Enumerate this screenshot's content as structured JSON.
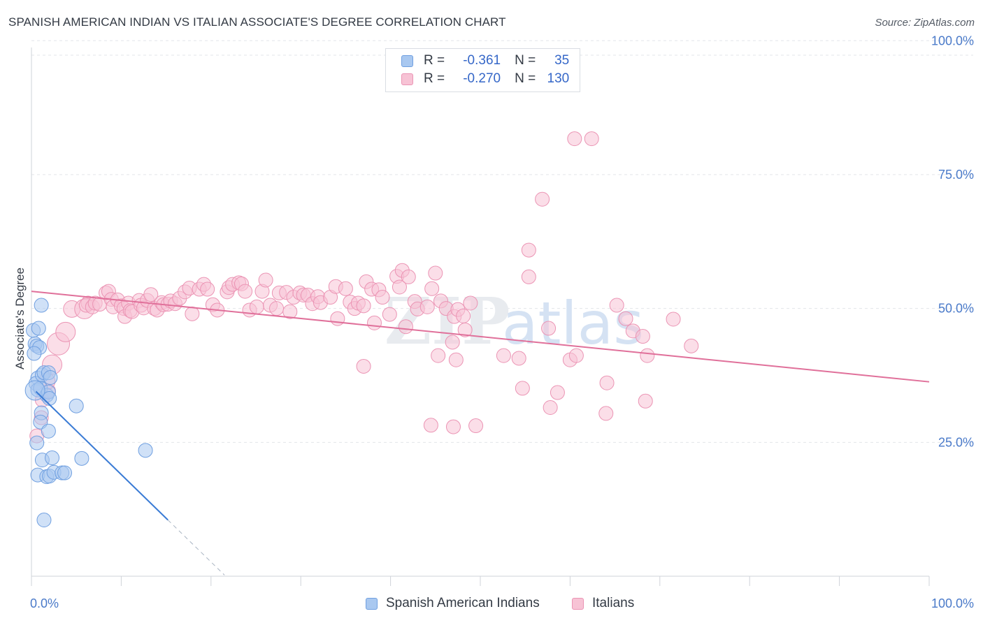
{
  "title": "SPANISH AMERICAN INDIAN VS ITALIAN ASSOCIATE'S DEGREE CORRELATION CHART",
  "source": "Source: ZipAtlas.com",
  "colors": {
    "blue": "#3a7bd5",
    "blue_fill": "#a9c8f0",
    "blue_stroke": "#6f9fe0",
    "pink": "#e0709a",
    "pink_fill": "#f7c3d5",
    "pink_stroke": "#eb94b4",
    "tick_text": "#4a7ac9"
  },
  "legend": {
    "rows": [
      {
        "r_label": "R =",
        "r_value": "-0.361",
        "n_label": "N =",
        "n_value": "35"
      },
      {
        "r_label": "R =",
        "r_value": "-0.270",
        "n_label": "N =",
        "n_value": "130"
      }
    ]
  },
  "bottom_legend": {
    "series1": "Spanish American Indians",
    "series2": "Italians"
  },
  "chart_data": {
    "type": "scatter",
    "title": "SPANISH AMERICAN INDIAN VS ITALIAN ASSOCIATE'S DEGREE CORRELATION CHART",
    "xlabel": "",
    "ylabel": "Associate's Degree",
    "xlim": [
      0,
      100
    ],
    "ylim": [
      0,
      100
    ],
    "x_tick_labels": [
      "0.0%",
      "100.0%"
    ],
    "y_ticks": [
      25,
      50,
      75,
      100
    ],
    "y_tick_labels": [
      "25.0%",
      "50.0%",
      "75.0%",
      "100.0%"
    ],
    "grid": true,
    "legend_position": "top-center",
    "watermark": "ZIPatlas",
    "series": [
      {
        "name": "Spanish American Indians",
        "r": -0.361,
        "n": 35,
        "trend": {
          "x0": 0.5,
          "y0": 34.5,
          "x1": 15.2,
          "y1": 10.5,
          "dash_to_x": 21.5
        },
        "points": [
          [
            0.2,
            45.9
          ],
          [
            0.4,
            43.4
          ],
          [
            0.6,
            43.0
          ],
          [
            0.9,
            42.7
          ],
          [
            1.1,
            50.6
          ],
          [
            0.8,
            46.3
          ],
          [
            0.7,
            37.0
          ],
          [
            0.5,
            36.0
          ],
          [
            0.7,
            34.8
          ],
          [
            1.0,
            35.1
          ],
          [
            1.2,
            37.6
          ],
          [
            1.4,
            38.0
          ],
          [
            1.9,
            38.0
          ],
          [
            2.1,
            37.1
          ],
          [
            1.7,
            33.8
          ],
          [
            1.9,
            34.4
          ],
          [
            2.0,
            33.2
          ],
          [
            1.1,
            30.5
          ],
          [
            1.0,
            28.8
          ],
          [
            1.9,
            27.1
          ],
          [
            0.6,
            24.9
          ],
          [
            1.2,
            21.7
          ],
          [
            2.3,
            22.1
          ],
          [
            0.7,
            18.9
          ],
          [
            1.7,
            18.6
          ],
          [
            2.0,
            18.7
          ],
          [
            2.5,
            19.4
          ],
          [
            3.4,
            19.3
          ],
          [
            3.7,
            19.3
          ],
          [
            5.0,
            31.8
          ],
          [
            5.6,
            22.0
          ],
          [
            12.7,
            23.5
          ],
          [
            1.4,
            10.5
          ],
          [
            0.4,
            34.7
          ],
          [
            0.3,
            41.6
          ]
        ],
        "sizes": [
          10,
          10,
          10,
          10,
          10,
          10,
          10,
          10,
          10,
          10,
          10,
          10,
          10,
          10,
          10,
          10,
          10,
          10,
          10,
          10,
          10,
          10,
          10,
          10,
          10,
          10,
          10,
          10,
          10,
          10,
          10,
          10,
          10,
          14,
          10
        ]
      },
      {
        "name": "Italians",
        "r": -0.27,
        "n": 130,
        "trend": {
          "x0": 0,
          "y0": 53.2,
          "x1": 100,
          "y1": 36.3
        },
        "points": [
          [
            0.6,
            26.2
          ],
          [
            1.1,
            29.6
          ],
          [
            1.2,
            32.9
          ],
          [
            1.9,
            34.6
          ],
          [
            1.7,
            36.4
          ],
          [
            2.3,
            39.5
          ],
          [
            3.0,
            43.4
          ],
          [
            3.8,
            45.6
          ],
          [
            4.5,
            49.9
          ],
          [
            5.9,
            49.9
          ],
          [
            6.3,
            51.0
          ],
          [
            6.1,
            50.6
          ],
          [
            6.8,
            50.3
          ],
          [
            7.1,
            51.0
          ],
          [
            7.6,
            50.8
          ],
          [
            8.3,
            52.9
          ],
          [
            8.6,
            53.2
          ],
          [
            8.9,
            51.7
          ],
          [
            9.1,
            50.3
          ],
          [
            9.6,
            51.6
          ],
          [
            10.0,
            50.5
          ],
          [
            10.3,
            50.0
          ],
          [
            10.4,
            48.5
          ],
          [
            10.8,
            51.0
          ],
          [
            11.0,
            49.6
          ],
          [
            11.2,
            49.4
          ],
          [
            12.0,
            51.5
          ],
          [
            12.2,
            50.6
          ],
          [
            12.5,
            50.1
          ],
          [
            12.9,
            51.5
          ],
          [
            13.3,
            52.6
          ],
          [
            13.7,
            50.0
          ],
          [
            14.0,
            49.7
          ],
          [
            14.5,
            51.1
          ],
          [
            14.7,
            50.7
          ],
          [
            15.2,
            50.8
          ],
          [
            15.5,
            51.4
          ],
          [
            16.0,
            50.9
          ],
          [
            16.5,
            51.9
          ],
          [
            17.1,
            53.1
          ],
          [
            17.6,
            53.8
          ],
          [
            17.9,
            49.0
          ],
          [
            18.7,
            53.6
          ],
          [
            19.2,
            54.5
          ],
          [
            19.6,
            53.6
          ],
          [
            20.2,
            50.7
          ],
          [
            20.7,
            49.7
          ],
          [
            21.8,
            53.1
          ],
          [
            22.0,
            53.9
          ],
          [
            22.4,
            54.5
          ],
          [
            23.1,
            54.8
          ],
          [
            23.4,
            54.6
          ],
          [
            23.8,
            53.2
          ],
          [
            24.3,
            49.7
          ],
          [
            25.1,
            50.3
          ],
          [
            25.7,
            53.2
          ],
          [
            26.1,
            55.3
          ],
          [
            26.6,
            50.6
          ],
          [
            27.3,
            50.0
          ],
          [
            27.6,
            52.9
          ],
          [
            28.4,
            53.0
          ],
          [
            28.8,
            49.4
          ],
          [
            29.2,
            52.1
          ],
          [
            29.9,
            52.9
          ],
          [
            30.3,
            52.5
          ],
          [
            30.8,
            52.5
          ],
          [
            31.3,
            50.9
          ],
          [
            31.9,
            52.2
          ],
          [
            32.2,
            51.1
          ],
          [
            33.3,
            52.1
          ],
          [
            33.9,
            54.1
          ],
          [
            34.1,
            48.1
          ],
          [
            35.0,
            53.7
          ],
          [
            35.5,
            51.2
          ],
          [
            36.0,
            50.0
          ],
          [
            36.4,
            51.0
          ],
          [
            37.0,
            50.5
          ],
          [
            37.3,
            55.0
          ],
          [
            37.9,
            53.6
          ],
          [
            38.2,
            47.3
          ],
          [
            38.7,
            53.5
          ],
          [
            39.1,
            52.1
          ],
          [
            39.9,
            48.9
          ],
          [
            40.7,
            56.0
          ],
          [
            41.0,
            54.0
          ],
          [
            41.3,
            57.1
          ],
          [
            41.7,
            46.6
          ],
          [
            42.0,
            55.9
          ],
          [
            42.7,
            51.3
          ],
          [
            43.0,
            49.9
          ],
          [
            44.1,
            50.3
          ],
          [
            44.6,
            53.7
          ],
          [
            45.0,
            56.6
          ],
          [
            45.6,
            51.4
          ],
          [
            46.2,
            50.0
          ],
          [
            47.1,
            48.5
          ],
          [
            47.5,
            49.8
          ],
          [
            48.1,
            48.6
          ],
          [
            48.3,
            46.0
          ],
          [
            48.9,
            51.0
          ],
          [
            46.9,
            43.7
          ],
          [
            45.3,
            41.2
          ],
          [
            47.3,
            40.4
          ],
          [
            37.0,
            39.2
          ],
          [
            52.6,
            41.2
          ],
          [
            54.3,
            40.7
          ],
          [
            57.6,
            46.3
          ],
          [
            60.0,
            40.4
          ],
          [
            60.7,
            41.2
          ],
          [
            65.2,
            50.6
          ],
          [
            66.2,
            48.1
          ],
          [
            67.0,
            45.8
          ],
          [
            68.1,
            44.8
          ],
          [
            71.5,
            48.0
          ],
          [
            73.5,
            43.0
          ],
          [
            55.4,
            55.9
          ],
          [
            47.0,
            27.9
          ],
          [
            49.5,
            28.1
          ],
          [
            44.5,
            28.2
          ],
          [
            58.6,
            34.3
          ],
          [
            56.9,
            70.4
          ],
          [
            60.5,
            81.7
          ],
          [
            62.4,
            81.7
          ],
          [
            64.1,
            36.1
          ],
          [
            64.0,
            30.4
          ],
          [
            68.6,
            41.2
          ],
          [
            68.4,
            32.7
          ],
          [
            55.4,
            60.9
          ],
          [
            54.7,
            35.1
          ],
          [
            57.8,
            31.5
          ]
        ],
        "sizes": [
          10,
          10,
          10,
          10,
          12,
          14,
          16,
          14,
          12,
          14,
          10,
          10,
          10,
          10,
          10,
          10,
          10,
          10,
          10,
          10,
          10,
          10,
          10,
          10,
          10,
          10,
          10,
          10,
          10,
          10,
          10,
          10,
          10,
          10,
          10,
          10,
          10,
          10,
          10,
          10,
          10,
          10,
          10,
          10,
          10,
          10,
          10,
          10,
          10,
          10,
          10,
          10,
          10,
          10,
          10,
          10,
          10,
          10,
          10,
          10,
          10,
          10,
          10,
          10,
          10,
          10,
          10,
          10,
          10,
          10,
          10,
          10,
          10,
          10,
          10,
          10,
          10,
          10,
          10,
          10,
          10,
          10,
          10,
          10,
          10,
          10,
          10,
          10,
          10,
          10,
          10,
          10,
          10,
          10,
          10,
          10,
          10,
          10,
          10,
          10,
          10,
          10,
          10,
          10,
          10,
          10,
          10,
          10,
          10,
          10,
          10,
          10,
          10,
          10,
          10,
          10,
          10,
          10,
          10,
          10,
          10,
          10,
          10,
          10,
          10,
          10,
          10,
          10,
          10,
          10
        ]
      }
    ]
  }
}
